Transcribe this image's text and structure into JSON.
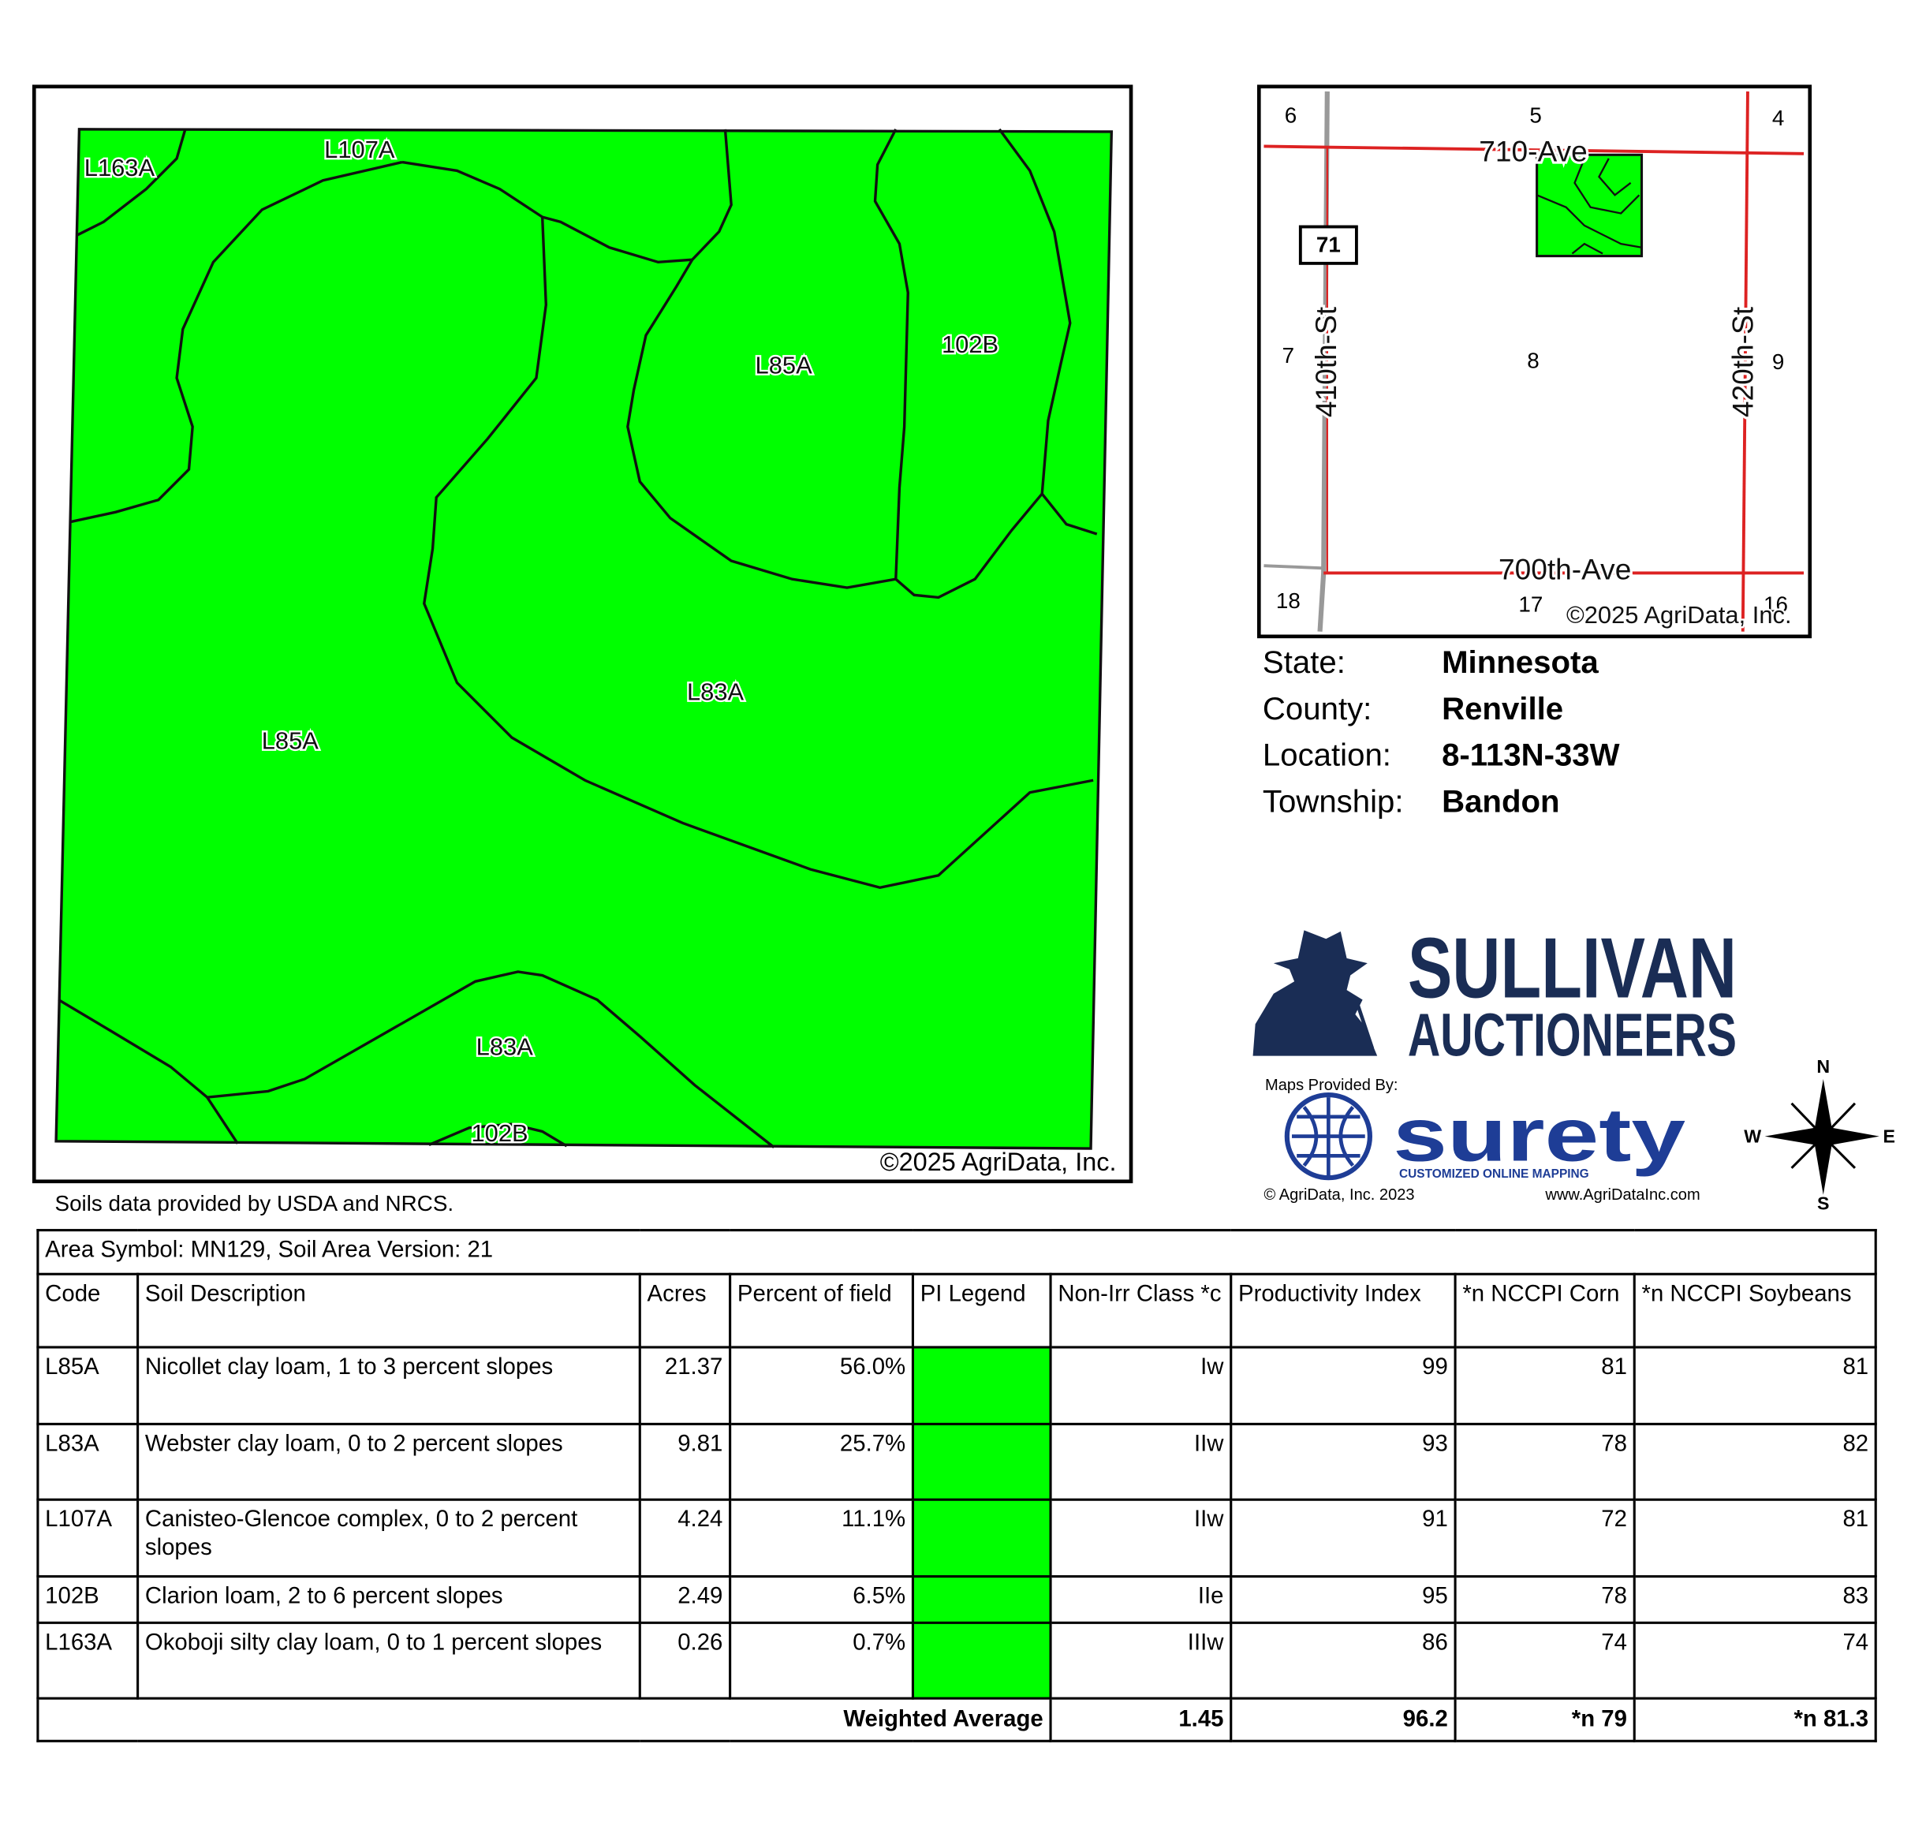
{
  "map": {
    "labels": [
      "L163A",
      "L107A",
      "L85A",
      "102B",
      "L83A",
      "L85A",
      "L83A",
      "102B"
    ],
    "copyright": "©2025 AgriData, Inc."
  },
  "locator": {
    "sections": [
      "6",
      "5",
      "4",
      "7",
      "8",
      "9",
      "18",
      "17",
      "16"
    ],
    "roads": [
      "710-Ave",
      "410th-St",
      "420th-St",
      "700th-Ave"
    ],
    "highway": "71",
    "copyright": "©2025 AgriData, Inc."
  },
  "location": {
    "rows": [
      [
        "State:",
        "Minnesota"
      ],
      [
        "County:",
        "Renville"
      ],
      [
        "Location:",
        "8-113N-33W"
      ],
      [
        "Township:",
        "Bandon"
      ]
    ]
  },
  "logo": {
    "name1": "SULLIVAN",
    "name2": "AUCTIONEERS",
    "maps_by": "Maps Provided By:",
    "brand": "surety",
    "tagline": "CUSTOMIZED ONLINE MAPPING",
    "copyright": "© AgriData, Inc. 2023",
    "url": "www.AgriDataInc.com"
  },
  "compass": {
    "n": "N",
    "e": "E",
    "s": "S",
    "w": "W"
  },
  "note": "Soils data provided by USDA and NRCS.",
  "table": {
    "caption": "Area Symbol: MN129, Soil Area Version: 21",
    "pi_color": "#00ff00",
    "headers": [
      "Code",
      "Soil Description",
      "Acres",
      "Percent of field",
      "PI Legend",
      "Non-Irr Class *c",
      "Productivity Index",
      "*n NCCPI Corn",
      "*n NCCPI Soybeans"
    ],
    "rows": [
      [
        "L85A",
        "Nicollet clay loam, 1 to 3 percent slopes",
        "21.37",
        "56.0%",
        "Iw",
        "99",
        "81",
        "81"
      ],
      [
        "L83A",
        "Webster clay loam, 0 to 2 percent slopes",
        "9.81",
        "25.7%",
        "IIw",
        "93",
        "78",
        "82"
      ],
      [
        "L107A",
        "Canisteo-Glencoe complex, 0 to 2 percent slopes",
        "4.24",
        "11.1%",
        "IIw",
        "91",
        "72",
        "81"
      ],
      [
        "102B",
        "Clarion loam, 2 to 6 percent slopes",
        "2.49",
        "6.5%",
        "IIe",
        "95",
        "78",
        "83"
      ],
      [
        "L163A",
        "Okoboji silty clay loam, 0 to 1 percent slopes",
        "0.26",
        "0.7%",
        "IIIw",
        "86",
        "74",
        "74"
      ]
    ],
    "footer": {
      "label": "Weighted Average",
      "values": [
        "1.45",
        "96.2",
        "*n 79",
        "*n 81.3"
      ]
    }
  }
}
